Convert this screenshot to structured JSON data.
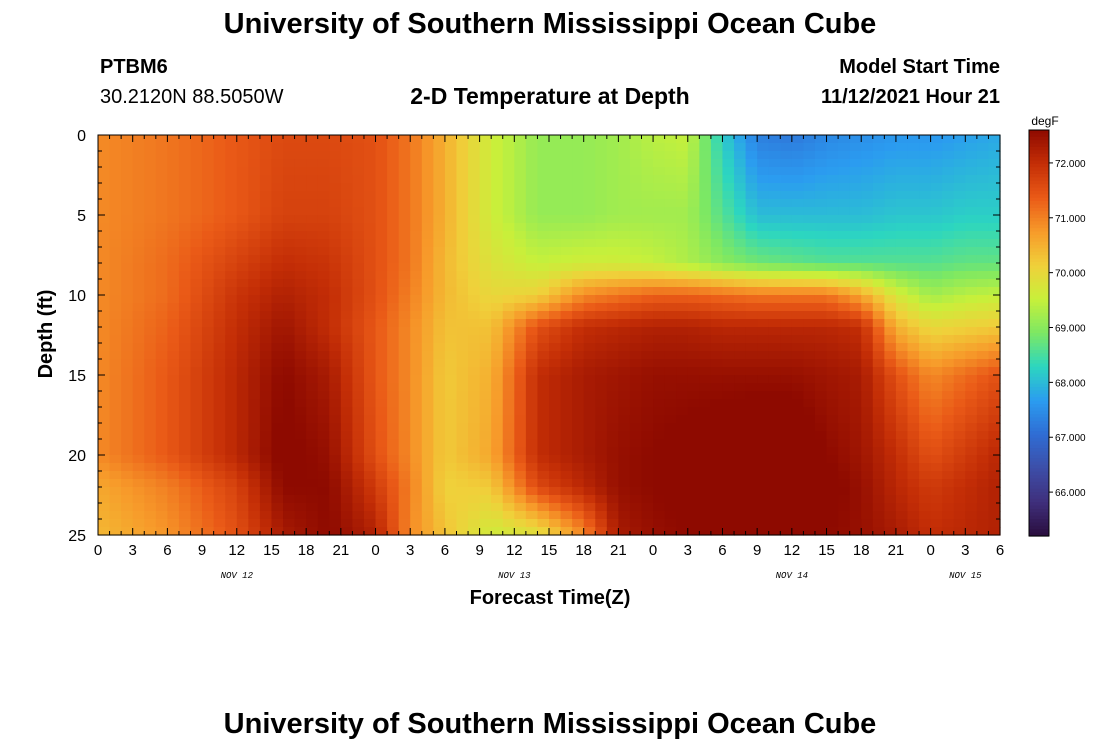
{
  "header": {
    "title": "University of Southern Mississippi Ocean Cube",
    "station_id": "PTBM6",
    "station_coords": "30.2120N  88.5050W",
    "subtitle": "2-D Temperature at Depth",
    "model_start_label": "Model Start Time",
    "model_start_value": "11/12/2021 Hour 21"
  },
  "footer": {
    "title": "University of Southern Mississippi Ocean Cube"
  },
  "chart_data": {
    "type": "heatmap",
    "title": "2-D Temperature at Depth",
    "xlabel": "Forecast Time(Z)",
    "ylabel": "Depth (ft)",
    "x_hours_range": [
      0,
      78
    ],
    "x_tick_labels": [
      "0",
      "3",
      "6",
      "9",
      "12",
      "15",
      "18",
      "21",
      "0",
      "3",
      "6",
      "9",
      "12",
      "15",
      "18",
      "21",
      "0",
      "3",
      "6",
      "9",
      "12",
      "15",
      "18",
      "21",
      "0",
      "3",
      "6"
    ],
    "date_labels": [
      {
        "label": "NOV 12",
        "hour": 12
      },
      {
        "label": "NOV 13",
        "hour": 36
      },
      {
        "label": "NOV 14",
        "hour": 60
      },
      {
        "label": "NOV 15",
        "hour": 75
      }
    ],
    "ylim": [
      0,
      25
    ],
    "y_inverted": true,
    "y_ticks": [
      "0",
      "5",
      "10",
      "15",
      "20",
      "25"
    ],
    "colorbar": {
      "unit": "degF",
      "range": [
        65.2,
        72.6
      ],
      "tick_labels": [
        "72.000",
        "71.000",
        "70.000",
        "69.000",
        "68.000",
        "67.000",
        "66.000"
      ],
      "tick_values": [
        72,
        71,
        70,
        69,
        68,
        67,
        66
      ],
      "colormap": [
        "#2a0d3d",
        "#3f2f7c",
        "#3d4ea8",
        "#2f6dd4",
        "#2b9cf0",
        "#2cd6c0",
        "#7de863",
        "#c8f03a",
        "#f0d03a",
        "#f79a2a",
        "#ea5a17",
        "#c42e06",
        "#8e0a00"
      ]
    },
    "time_columns_hours": [
      0,
      6,
      12,
      16,
      20,
      24,
      27,
      30,
      34,
      38,
      42,
      45,
      48,
      51,
      54,
      57,
      60,
      63,
      66,
      69,
      72,
      75,
      78
    ],
    "depth_rows_ft": [
      0,
      5,
      8,
      10,
      12,
      15,
      20,
      22,
      25
    ],
    "temperature_degF": [
      [
        70.9,
        71.1,
        71.4,
        71.6,
        71.6,
        71.5,
        71.1,
        70.5,
        69.6,
        69.1,
        69.1,
        69.2,
        69.4,
        69.5,
        68.2,
        67.3,
        67.2,
        67.4,
        67.5,
        67.6,
        67.6,
        67.7,
        67.8
      ],
      [
        70.9,
        71.1,
        71.4,
        71.7,
        71.7,
        71.5,
        71.1,
        70.5,
        69.6,
        69.1,
        69.1,
        69.2,
        69.2,
        69.2,
        68.6,
        68.0,
        68.0,
        68.0,
        68.0,
        68.1,
        68.1,
        68.2,
        68.2
      ],
      [
        70.9,
        71.2,
        71.7,
        72.0,
        71.9,
        71.5,
        71.1,
        70.4,
        69.8,
        69.5,
        69.6,
        69.6,
        69.5,
        69.3,
        69.0,
        68.8,
        68.7,
        68.6,
        68.6,
        68.6,
        68.6,
        68.7,
        68.7
      ],
      [
        70.9,
        71.2,
        71.9,
        72.2,
        72.0,
        71.5,
        71.0,
        70.4,
        70.0,
        70.1,
        70.9,
        71.1,
        71.3,
        71.3,
        71.2,
        71.1,
        71.1,
        71.1,
        70.6,
        69.7,
        69.2,
        69.4,
        69.5
      ],
      [
        70.9,
        71.3,
        72.0,
        72.4,
        72.0,
        71.4,
        70.9,
        70.3,
        70.3,
        71.5,
        72.0,
        72.1,
        72.2,
        72.2,
        72.1,
        72.1,
        72.1,
        72.1,
        72.0,
        70.5,
        70.0,
        70.1,
        70.2
      ],
      [
        70.9,
        71.4,
        72.1,
        72.6,
        72.3,
        71.4,
        70.9,
        70.2,
        70.5,
        72.0,
        72.3,
        72.4,
        72.5,
        72.5,
        72.5,
        72.5,
        72.5,
        72.4,
        72.3,
        71.5,
        70.9,
        71.2,
        71.5
      ],
      [
        70.9,
        71.4,
        72.1,
        72.7,
        72.5,
        71.5,
        70.9,
        70.2,
        70.6,
        72.0,
        72.3,
        72.5,
        72.6,
        72.7,
        72.8,
        72.9,
        72.9,
        72.6,
        72.4,
        72.0,
        71.5,
        71.8,
        72.1
      ],
      [
        70.6,
        71.0,
        71.7,
        72.6,
        72.6,
        71.8,
        71.0,
        70.1,
        70.2,
        71.6,
        72.1,
        72.5,
        72.6,
        72.7,
        72.8,
        73.0,
        73.0,
        72.7,
        72.5,
        72.1,
        71.8,
        72.0,
        72.2
      ],
      [
        70.4,
        70.8,
        71.5,
        72.3,
        72.6,
        72.2,
        70.9,
        70.3,
        69.6,
        69.8,
        70.9,
        72.3,
        72.5,
        72.6,
        72.6,
        72.7,
        72.8,
        72.6,
        72.5,
        72.3,
        72.0,
        72.1,
        72.2
      ]
    ]
  }
}
